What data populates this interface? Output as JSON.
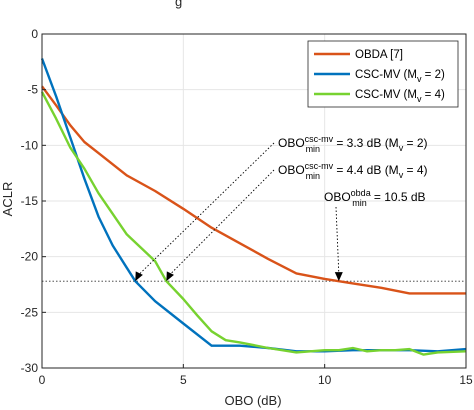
{
  "chart_data": {
    "type": "line",
    "xlabel": "OBO (dB)",
    "ylabel": "ACLR",
    "xlim": [
      0,
      15
    ],
    "ylim": [
      -30,
      0
    ],
    "x_ticks": [
      "0",
      "5",
      "10",
      "15"
    ],
    "y_ticks": [
      "0",
      "-5",
      "-10",
      "-15",
      "-20",
      "-25",
      "-30"
    ],
    "grid": true,
    "legend_position": "top-right",
    "legend": [
      {
        "label": "OBDA [7]",
        "color": "#d95319"
      },
      {
        "label": "CSC-MV (M",
        "sub": "v",
        "suffix": " = 2)",
        "color": "#0072bd"
      },
      {
        "label": "CSC-MV (M",
        "sub": "v",
        "suffix": " = 4)",
        "color": "#77d230"
      }
    ],
    "series": [
      {
        "name": "OBDA [7]",
        "color": "#d95319",
        "x": [
          0,
          0.5,
          1,
          1.5,
          2,
          3,
          4,
          5,
          6,
          7,
          8,
          9,
          10,
          10.5,
          11,
          12,
          13,
          14,
          15
        ],
        "y": [
          -4.7,
          -6.4,
          -8.2,
          -9.7,
          -10.7,
          -12.7,
          -14.1,
          -15.7,
          -17.4,
          -18.8,
          -20.2,
          -21.5,
          -22.0,
          -22.2,
          -22.4,
          -22.8,
          -23.3,
          -23.3,
          -23.3
        ]
      },
      {
        "name": "CSC-MV (Mv = 2)",
        "color": "#0072bd",
        "x": [
          0,
          0.5,
          1,
          1.5,
          2,
          2.5,
          3,
          3.3,
          4,
          5,
          6,
          7,
          8,
          9,
          10,
          11,
          12,
          13,
          14,
          15
        ],
        "y": [
          -2.2,
          -5.6,
          -9.3,
          -13.0,
          -16.4,
          -19.0,
          -21.0,
          -22.2,
          -24.0,
          -26.0,
          -28.0,
          -28.0,
          -28.2,
          -28.5,
          -28.5,
          -28.4,
          -28.4,
          -28.4,
          -28.5,
          -28.3
        ]
      },
      {
        "name": "CSC-MV (Mv = 4)",
        "color": "#77d230",
        "x": [
          0,
          0.5,
          1,
          1.5,
          2,
          3,
          4,
          4.4,
          5,
          5.5,
          6,
          6.5,
          7,
          8,
          9,
          10,
          10.5,
          11,
          11.5,
          12,
          12.5,
          13,
          13.5,
          14,
          15
        ],
        "y": [
          -5.2,
          -7.6,
          -10.2,
          -12.1,
          -14.3,
          -18.0,
          -20.4,
          -22.2,
          -23.8,
          -25.3,
          -26.7,
          -27.5,
          -27.7,
          -28.2,
          -28.6,
          -28.4,
          -28.4,
          -28.2,
          -28.5,
          -28.4,
          -28.4,
          -28.3,
          -28.8,
          -28.6,
          -28.5
        ]
      }
    ],
    "reference_line_y": -22.2,
    "annotations": [
      {
        "base": "OBO",
        "sup": "csc-mv",
        "sub": "min",
        "text": " = 3.3 dB (M",
        "text_sub": "v",
        "tail": " = 2)",
        "points_to": [
          3.3,
          -22.2
        ]
      },
      {
        "base": "OBO",
        "sup": "csc-mv",
        "sub": "min",
        "text": " = 4.4 dB (M",
        "text_sub": "v",
        "tail": " = 4)",
        "points_to": [
          4.4,
          -22.2
        ]
      },
      {
        "base": "OBO",
        "sup": "obda",
        "sub": "min",
        "text": " = 10.5 dB",
        "points_to": [
          10.5,
          -22.2
        ]
      }
    ],
    "title_fragment": "g"
  }
}
